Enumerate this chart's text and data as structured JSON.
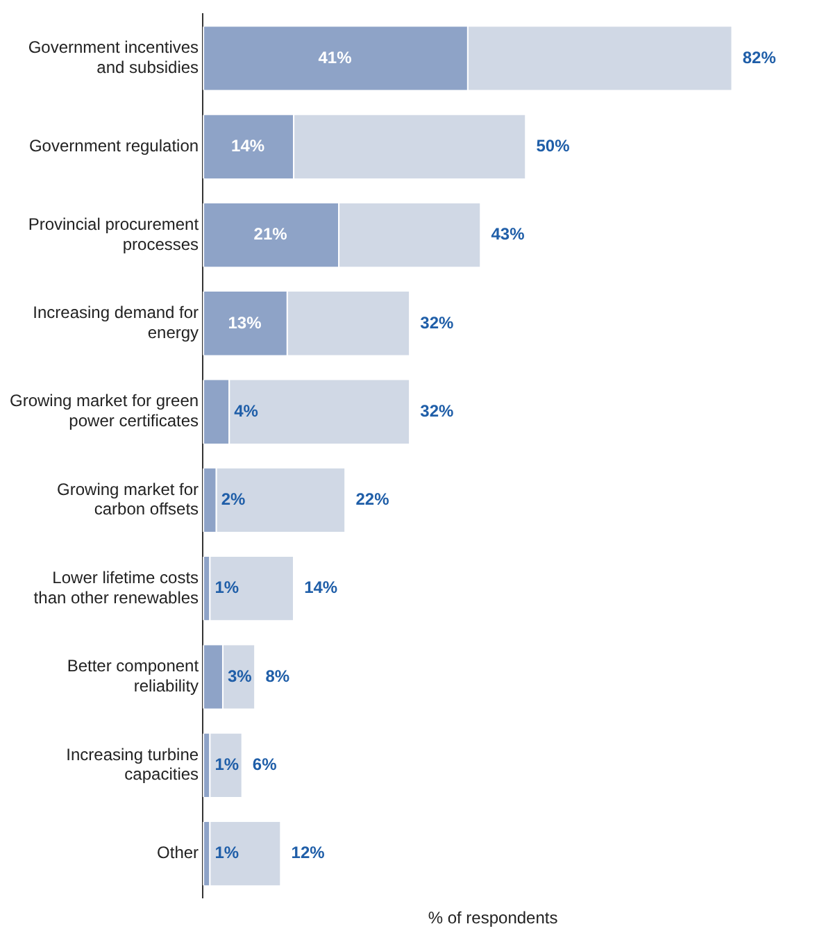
{
  "chart_data": {
    "type": "bar",
    "orientation": "horizontal",
    "stacked": true,
    "categories": [
      "Government incentives and subsidies",
      "Government regulation",
      "Provincial procurement processes",
      "Increasing demand for energy",
      "Growing market for green power certificates",
      "Growing market for carbon offsets",
      "Lower lifetime costs than other renewables",
      "Better component reliability",
      "Increasing turbine capacities",
      "Other"
    ],
    "series": [
      {
        "color": "#8ea3c7",
        "values": [
          41,
          14,
          21,
          13,
          4,
          2,
          1,
          3,
          1,
          1
        ],
        "value_labels": [
          "41%",
          "14%",
          "21%",
          "13%",
          "4%",
          "2%",
          "1%",
          "3%",
          "1%",
          "1%"
        ]
      },
      {
        "color": "#d0d8e5",
        "values": [
          41,
          36,
          22,
          19,
          28,
          20,
          13,
          5,
          5,
          11
        ]
      }
    ],
    "totals": [
      "82%",
      "50%",
      "43%",
      "32%",
      "32%",
      "22%",
      "14%",
      "8%",
      "6%",
      "12%"
    ],
    "xlabel": "% of respondents",
    "tick_labels": "y",
    "grid": false,
    "legend": false
  }
}
